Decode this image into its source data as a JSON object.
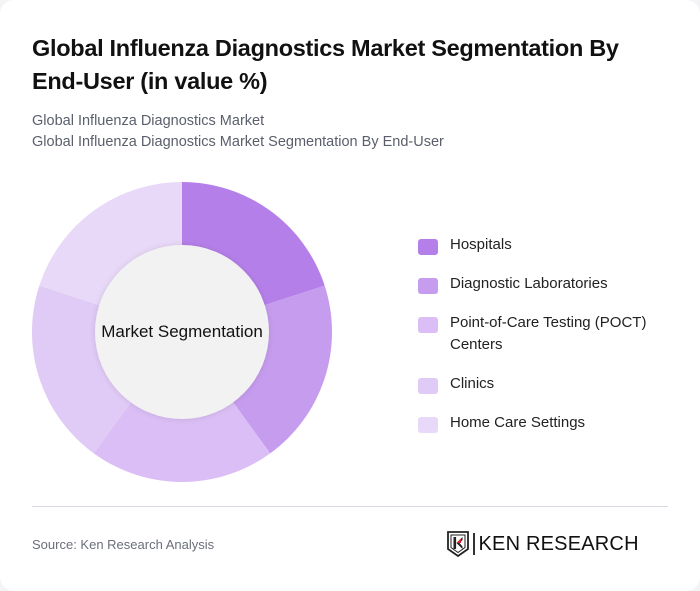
{
  "header": {
    "title": "Global Influenza Diagnostics Market Segmentation By End-User (in value %)",
    "subtitle_line1": "Global Influenza Diagnostics Market",
    "subtitle_line2": "Global Influenza Diagnostics Market Segmentation By End-User"
  },
  "chart": {
    "center_label": "Market Segmentation"
  },
  "legend": {
    "items": [
      {
        "label": "Hospitals",
        "color": "#b57fe9"
      },
      {
        "label": "Diagnostic Laboratories",
        "color": "#c69cee"
      },
      {
        "label": "Point-of-Care Testing (POCT) Centers",
        "color": "#dabef5"
      },
      {
        "label": "Clinics",
        "color": "#e0caf6"
      },
      {
        "label": "Home Care Settings",
        "color": "#e9d9f9"
      }
    ]
  },
  "footer": {
    "source": "Source: Ken Research Analysis",
    "logo_text": "KEN RESEARCH",
    "logo_icon": "ken-research-shield-k-icon"
  },
  "chart_data": {
    "type": "pie",
    "variant": "donut",
    "title": "Global Influenza Diagnostics Market Segmentation By End-User (in value %)",
    "subtitle": "Global Influenza Diagnostics Market Segmentation By End-User",
    "center_label": "Market Segmentation",
    "categories": [
      "Hospitals",
      "Diagnostic Laboratories",
      "Point-of-Care Testing (POCT) Centers",
      "Clinics",
      "Home Care Settings"
    ],
    "values": [
      20,
      20,
      20,
      20,
      20
    ],
    "colors": [
      "#b57fe9",
      "#c69cee",
      "#dabef5",
      "#e0caf6",
      "#e9d9f9"
    ],
    "legend_position": "right",
    "start_angle": "top, clockwise",
    "unit": "%"
  }
}
